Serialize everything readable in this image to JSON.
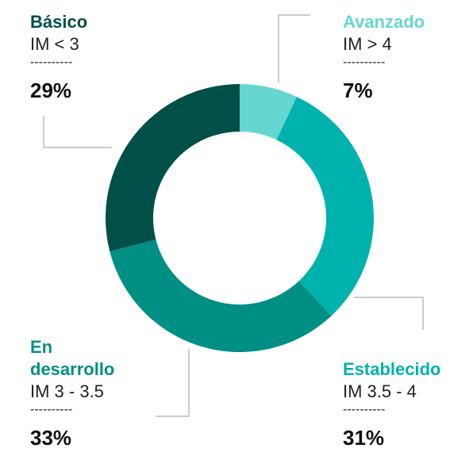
{
  "chart_data": {
    "type": "pie",
    "donut": true,
    "start_angle_deg": 0,
    "direction": "clockwise",
    "slices": [
      {
        "name": "Avanzado",
        "range": "IM > 4",
        "value": 7,
        "label": "7%",
        "color": "#66d6d0"
      },
      {
        "name": "Establecido",
        "range": "IM 3.5 - 4",
        "value": 31,
        "label": "31%",
        "color": "#00b2ad"
      },
      {
        "name": "En desarrollo",
        "range": "IM 3 - 3.5",
        "value": 33,
        "label": "33%",
        "color": "#008f84"
      },
      {
        "name": "Básico",
        "range": "IM < 3",
        "value": 29,
        "label": "29%",
        "color": "#004f48"
      }
    ],
    "separator": "----------",
    "leader_color": "#cccccc"
  },
  "labels": {
    "basico": {
      "name": "Básico",
      "sub": "IM < 3",
      "dash": "----------",
      "pct": "29%",
      "color": "#004f48"
    },
    "avanzado": {
      "name": "Avanzado",
      "sub": "IM > 4",
      "dash": "----------",
      "pct": "7%",
      "color": "#66d6d0"
    },
    "endesarrollo": {
      "name_line1": "En",
      "name_line2": "desarrollo",
      "sub": "IM 3 - 3.5",
      "dash": "----------",
      "pct": "33%",
      "color": "#008f84"
    },
    "establecido": {
      "name": "Establecido",
      "sub": "IM 3.5 - 4",
      "dash": "----------",
      "pct": "31%",
      "color": "#00b2ad"
    }
  }
}
